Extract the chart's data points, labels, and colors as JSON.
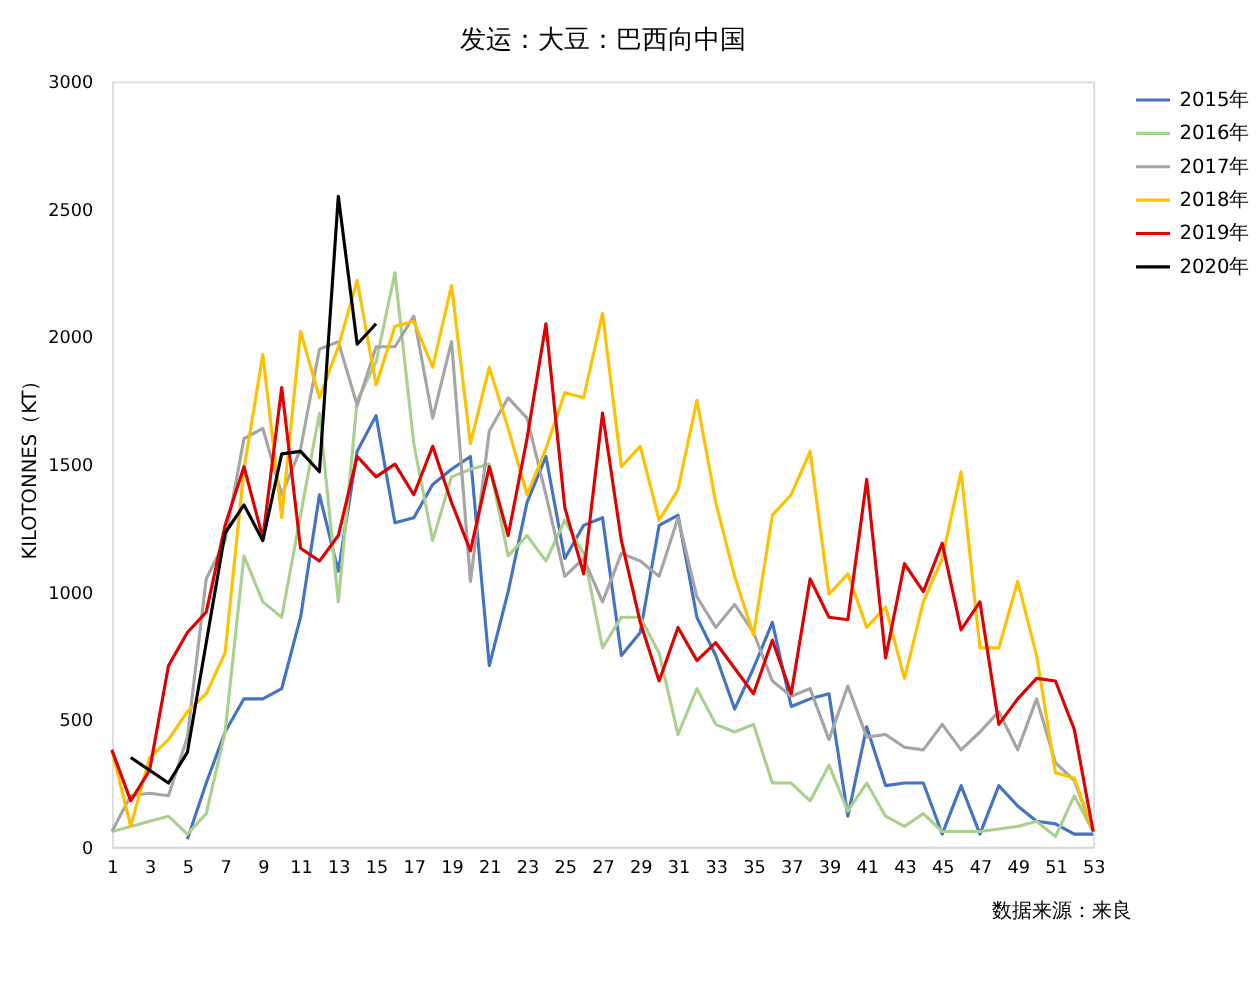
{
  "chart_data": {
    "type": "line",
    "title": "发运：大豆：巴西向中国",
    "ylabel": "KILOTONNES（KT）",
    "x": [
      1,
      2,
      3,
      4,
      5,
      6,
      7,
      8,
      9,
      10,
      11,
      12,
      13,
      14,
      15,
      16,
      17,
      18,
      19,
      20,
      21,
      22,
      23,
      24,
      25,
      26,
      27,
      28,
      29,
      30,
      31,
      32,
      33,
      34,
      35,
      36,
      37,
      38,
      39,
      40,
      41,
      42,
      43,
      44,
      45,
      46,
      47,
      48,
      49,
      50,
      51,
      52,
      53
    ],
    "xlim": [
      1,
      53
    ],
    "xticks": [
      1,
      3,
      5,
      7,
      9,
      11,
      13,
      15,
      17,
      19,
      21,
      23,
      25,
      27,
      29,
      31,
      33,
      35,
      37,
      39,
      41,
      43,
      45,
      47,
      49,
      51,
      53
    ],
    "ylim": [
      0,
      3000
    ],
    "yticks": [
      0,
      500,
      1000,
      1500,
      2000,
      2500,
      3000
    ],
    "grid": false,
    "legend": "right",
    "marker": "none",
    "line_style": "solid",
    "series": [
      {
        "name": "2015年",
        "color": "#4472c4",
        "values": [
          null,
          null,
          null,
          null,
          30,
          250,
          450,
          580,
          580,
          620,
          900,
          1380,
          1080,
          1550,
          1690,
          1270,
          1290,
          1420,
          1480,
          1530,
          710,
          1000,
          1350,
          1530,
          1130,
          1260,
          1290,
          750,
          840,
          1260,
          1300,
          900,
          750,
          540,
          700,
          880,
          550,
          580,
          600,
          120,
          470,
          240,
          250,
          250,
          50,
          240,
          50,
          240,
          160,
          100,
          90,
          50,
          50
        ]
      },
      {
        "name": "2016年",
        "color": "#a9d18e",
        "values": [
          60,
          80,
          100,
          120,
          50,
          130,
          450,
          1140,
          960,
          900,
          1300,
          1700,
          960,
          1750,
          1900,
          2250,
          1580,
          1200,
          1450,
          1480,
          1500,
          1140,
          1220,
          1120,
          1280,
          1150,
          780,
          900,
          900,
          760,
          440,
          620,
          480,
          450,
          480,
          250,
          250,
          180,
          320,
          140,
          250,
          120,
          80,
          130,
          60,
          60,
          60,
          70,
          80,
          100,
          40,
          200,
          60
        ]
      },
      {
        "name": "2017年",
        "color": "#a5a5a5",
        "values": [
          60,
          200,
          210,
          200,
          430,
          1050,
          1200,
          1600,
          1640,
          1380,
          1560,
          1950,
          1980,
          1730,
          1960,
          1960,
          2080,
          1680,
          1980,
          1040,
          1630,
          1760,
          1680,
          1380,
          1060,
          1130,
          960,
          1150,
          1120,
          1060,
          1290,
          980,
          860,
          950,
          840,
          650,
          590,
          620,
          420,
          630,
          430,
          440,
          390,
          380,
          480,
          380,
          450,
          530,
          380,
          580,
          330,
          260,
          60
        ]
      },
      {
        "name": "2018年",
        "color": "#ffc000",
        "values": [
          380,
          80,
          350,
          420,
          530,
          600,
          760,
          1480,
          1930,
          1290,
          2020,
          1760,
          1960,
          2220,
          1810,
          2040,
          2060,
          1880,
          2200,
          1580,
          1880,
          1640,
          1380,
          1560,
          1780,
          1760,
          2090,
          1490,
          1570,
          1280,
          1400,
          1750,
          1350,
          1060,
          830,
          1300,
          1380,
          1550,
          990,
          1070,
          860,
          940,
          660,
          960,
          1130,
          1470,
          780,
          780,
          1040,
          750,
          290,
          270,
          60
        ]
      },
      {
        "name": "2019年",
        "color": "#e00000",
        "values": [
          380,
          180,
          300,
          710,
          840,
          920,
          1260,
          1490,
          1210,
          1800,
          1170,
          1120,
          1220,
          1530,
          1450,
          1500,
          1380,
          1570,
          1350,
          1160,
          1490,
          1220,
          1600,
          2050,
          1330,
          1070,
          1700,
          1200,
          880,
          650,
          860,
          730,
          800,
          700,
          600,
          810,
          600,
          1050,
          900,
          890,
          1440,
          740,
          1110,
          1000,
          1190,
          850,
          960,
          480,
          580,
          660,
          650,
          460,
          60
        ]
      },
      {
        "name": "2020年",
        "color": "#000000",
        "values": [
          null,
          350,
          300,
          250,
          370,
          800,
          1230,
          1340,
          1200,
          1540,
          1550,
          1470,
          2550,
          1970,
          2050,
          null,
          null,
          null,
          null,
          null,
          null,
          null,
          null,
          null,
          null,
          null,
          null,
          null,
          null,
          null,
          null,
          null,
          null,
          null,
          null,
          null,
          null,
          null,
          null,
          null,
          null,
          null,
          null,
          null,
          null,
          null,
          null,
          null,
          null,
          null,
          null,
          null,
          null
        ]
      }
    ],
    "annotations": [
      "数据来源：来良"
    ]
  }
}
